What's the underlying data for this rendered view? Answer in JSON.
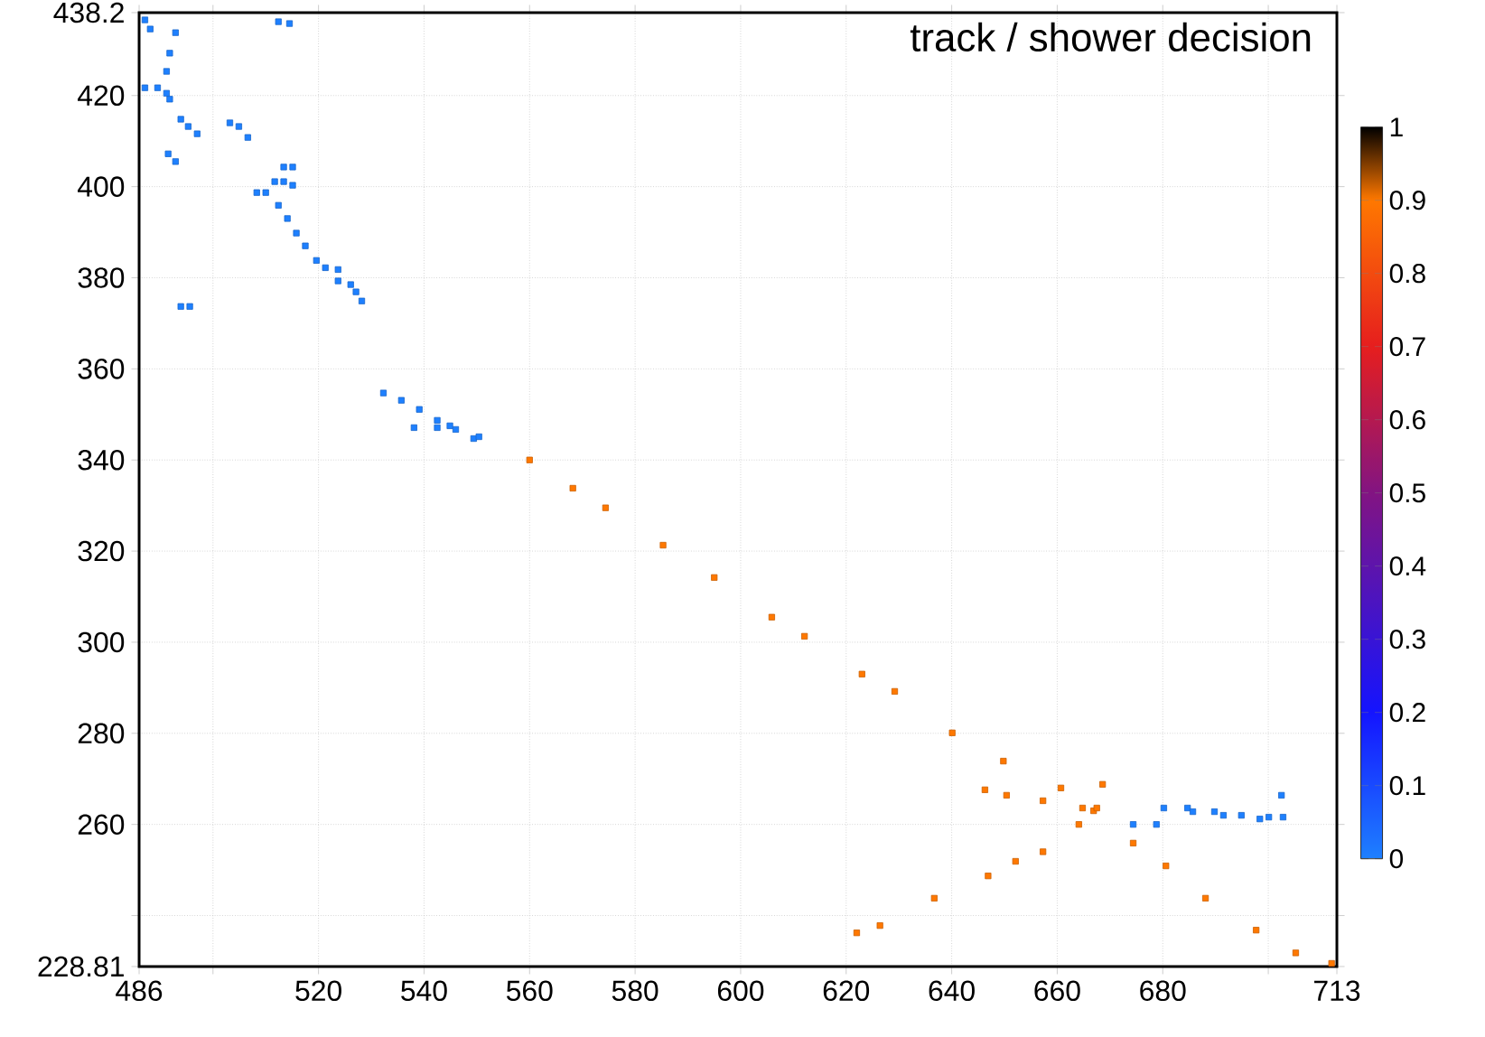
{
  "chart_data": {
    "type": "scatter",
    "title": "track / shower decision",
    "xlim": [
      486,
      713
    ],
    "xticks": [
      486,
      {
        "value": 500,
        "label": null
      },
      520,
      540,
      560,
      580,
      600,
      620,
      640,
      660,
      680,
      {
        "value": 700,
        "label": null
      },
      713
    ],
    "ylim": [
      228.81,
      438.2
    ],
    "yticks": [
      228.81,
      {
        "value": 240,
        "label": null
      },
      260,
      280,
      300,
      320,
      340,
      360,
      380,
      400,
      420,
      438.2
    ],
    "grid": true,
    "marker": "square",
    "clim": [
      0,
      1
    ],
    "cticks": [
      0,
      0.1,
      0.2,
      0.3,
      0.4,
      0.5,
      0.6,
      0.7,
      0.8,
      0.9,
      1
    ],
    "series": [
      {
        "x": [
          487.1,
          488.1,
          492.9,
          491.8,
          491.2,
          487.1,
          489.5,
          491.2,
          491.8,
          493.9,
          495.3,
          497.0,
          491.5,
          492.9,
          503.2,
          504.9,
          506.6,
          513.4,
          515.1,
          508.3,
          510.0,
          511.7,
          513.4,
          515.1,
          512.4,
          514.1,
          515.8,
          517.5,
          519.6,
          521.3,
          523.7,
          523.7,
          526.1,
          527.1,
          528.2,
          493.9,
          495.6,
          512.4,
          514.5,
          532.3,
          535.7,
          539.1,
          542.5,
          546.0,
          549.4,
          538.1,
          542.5,
          544.9,
          550.4,
          674.4,
          678.8,
          680.2,
          684.7,
          685.7,
          689.8,
          691.5,
          694.9,
          698.4,
          700.1,
          702.8,
          702.5
        ],
        "values": [
          436.6,
          434.6,
          433.8,
          429.3,
          425.3,
          421.7,
          421.7,
          420.5,
          419.2,
          414.8,
          413.2,
          411.6,
          407.2,
          405.5,
          414.0,
          413.2,
          410.8,
          404.3,
          404.3,
          398.7,
          398.7,
          401.1,
          401.1,
          400.3,
          395.9,
          393.0,
          389.8,
          387.0,
          383.8,
          382.2,
          381.8,
          379.3,
          378.5,
          376.9,
          374.9,
          373.7,
          373.7,
          436.2,
          435.8,
          354.7,
          353.1,
          351.1,
          348.7,
          346.7,
          344.7,
          347.1,
          347.1,
          347.5,
          345.1,
          260.0,
          260.0,
          263.6,
          263.6,
          262.8,
          262.8,
          262.0,
          262.0,
          261.2,
          261.6,
          261.6,
          266.4
        ],
        "cvalues": [
          0,
          0,
          0,
          0,
          0,
          0,
          0,
          0,
          0,
          0,
          0,
          0,
          0,
          0,
          0,
          0,
          0,
          0,
          0,
          0,
          0,
          0,
          0,
          0,
          0,
          0,
          0,
          0,
          0,
          0,
          0,
          0,
          0,
          0,
          0,
          0,
          0,
          0,
          0,
          0,
          0,
          0,
          0,
          0,
          0,
          0,
          0,
          0,
          0,
          0,
          0,
          0,
          0,
          0,
          0,
          0,
          0,
          0,
          0,
          0,
          0
        ]
      },
      {
        "x": [
          560,
          568.2,
          574.4,
          585.3,
          595,
          605.9,
          612.1,
          623.0,
          629.2,
          640.1,
          649.8,
          660.7,
          666.9,
          674.4,
          680.6,
          688.1,
          697.7,
          705.2,
          712.0,
          646.3,
          650.4,
          657.3,
          664.8,
          668.6,
          622.0,
          626.4,
          636.7,
          646.9,
          652.1,
          657.3,
          664.1,
          667.5
        ],
        "values": [
          340,
          333.8,
          329.5,
          321.3,
          314.2,
          305.5,
          301.3,
          293.0,
          289.2,
          280.1,
          273.9,
          268.0,
          263.0,
          255.9,
          250.9,
          243.8,
          236.8,
          231.8,
          229.5,
          267.6,
          266.4,
          265.2,
          263.6,
          268.8,
          236.2,
          237.8,
          243.8,
          248.7,
          251.9,
          254.0,
          260.0,
          263.6
        ],
        "cvalues": [
          0.9,
          0.9,
          0.9,
          0.9,
          0.9,
          0.9,
          0.9,
          0.9,
          0.9,
          0.9,
          0.9,
          0.9,
          0.9,
          0.9,
          0.9,
          0.9,
          0.9,
          0.9,
          0.9,
          0.9,
          0.9,
          0.9,
          0.9,
          0.9,
          0.9,
          0.9,
          0.9,
          0.9,
          0.9,
          0.9,
          0.9,
          0.9
        ]
      }
    ]
  }
}
